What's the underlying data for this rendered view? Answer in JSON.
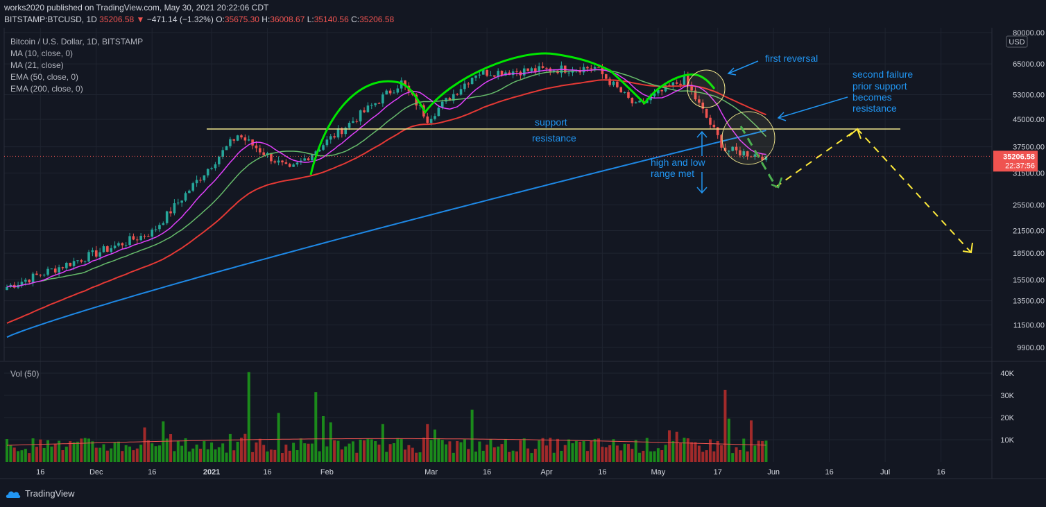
{
  "header": {
    "publish_line": "works2020 published on TradingView.com, May 30, 2021 20:22:06 CDT",
    "symbol": "BITSTAMP:BTCUSD, 1D",
    "last": "35206.58",
    "change": "−471.14 (−1.32%)",
    "o_label": "O:",
    "o": "35675.30",
    "h_label": "H:",
    "h": "36008.67",
    "l_label": "L:",
    "l": "35140.56",
    "c_label": "C:",
    "c": "35206.58"
  },
  "legend": {
    "title": "Bitcoin / U.S. Dollar, 1D, BITSTAMP",
    "indicators": [
      "MA (10, close, 0)",
      "MA (21, close)",
      "EMA (50, close, 0)",
      "EMA (200, close, 0)"
    ],
    "volume_label": "Vol (50)"
  },
  "price_axis": {
    "currency": "USD",
    "ticks": [
      "80000.00",
      "65000.00",
      "53000.00",
      "45000.00",
      "37500.00",
      "31500.00",
      "25500.00",
      "21500.00",
      "18500.00",
      "15500.00",
      "13500.00",
      "11500.00",
      "9900.00"
    ],
    "last_price": "35206.58",
    "countdown": "22:37:56"
  },
  "volume_axis": {
    "ticks": [
      "40K",
      "30K",
      "20K",
      "10K"
    ]
  },
  "time_axis": {
    "ticks": [
      "16",
      "Dec",
      "16",
      "2021",
      "16",
      "Feb",
      "Mar",
      "16",
      "Apr",
      "16",
      "May",
      "17",
      "Jun",
      "16",
      "Jul",
      "16"
    ]
  },
  "annotations": {
    "support": "support",
    "resistance": "resistance",
    "first_reversal": "first reversal",
    "second_failure": [
      "second failure",
      "prior support",
      "becomes",
      "resistance"
    ],
    "high_low": [
      "high and low",
      "range met"
    ]
  },
  "colors": {
    "bg": "#131722",
    "up": "#26a69a",
    "down": "#ef5350",
    "ma10": "#e040fb",
    "ma21": "#66bb6a",
    "ema50": "#e53935",
    "ema200": "#1e88e5",
    "support_line": "#f0e68c",
    "arch": "#00e600",
    "annotation": "#2196f3",
    "projection": "#ffeb3b"
  },
  "chart_data": {
    "type": "candlestick",
    "symbol": "BITSTAMP:BTCUSD",
    "interval": "1D",
    "y_scale": "log",
    "price_range": [
      9000,
      80000
    ],
    "support_resistance_level": 42000,
    "key_points": [
      {
        "date": "2020-11-07",
        "close": 14800
      },
      {
        "date": "2020-12-16",
        "close": 21300
      },
      {
        "date": "2021-01-08",
        "close": 40600
      },
      {
        "date": "2021-01-22",
        "close": 32000
      },
      {
        "date": "2021-02-21",
        "close": 57500
      },
      {
        "date": "2021-02-28",
        "close": 45200
      },
      {
        "date": "2021-03-13",
        "close": 61200
      },
      {
        "date": "2021-04-14",
        "close": 63500
      },
      {
        "date": "2021-04-25",
        "close": 49000
      },
      {
        "date": "2021-05-08",
        "close": 58800
      },
      {
        "date": "2021-05-19",
        "close": 36700
      },
      {
        "date": "2021-05-30",
        "close": 35206.58
      }
    ],
    "volume_max": 40000
  }
}
